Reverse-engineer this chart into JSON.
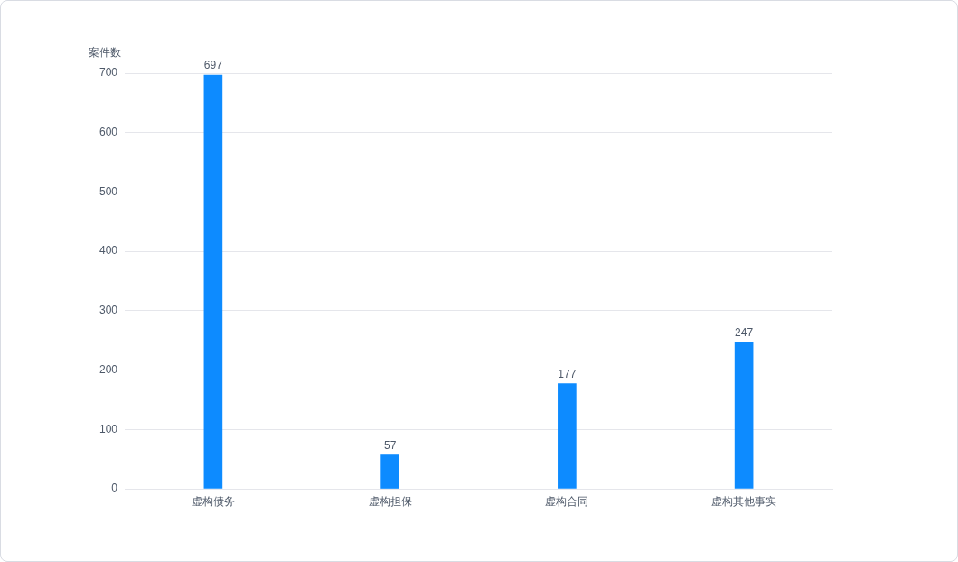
{
  "chart_data": {
    "type": "bar",
    "ylabel": "案件数",
    "categories": [
      "虚构债务",
      "虚构担保",
      "虚构合同",
      "虚构其他事实"
    ],
    "values": [
      697,
      57,
      177,
      247
    ],
    "color": "#0d8bff",
    "ylim": [
      0,
      700
    ],
    "yticks": [
      0,
      100,
      200,
      300,
      400,
      500,
      600,
      700
    ],
    "grid": "y",
    "data_labels": true,
    "legend": false
  }
}
